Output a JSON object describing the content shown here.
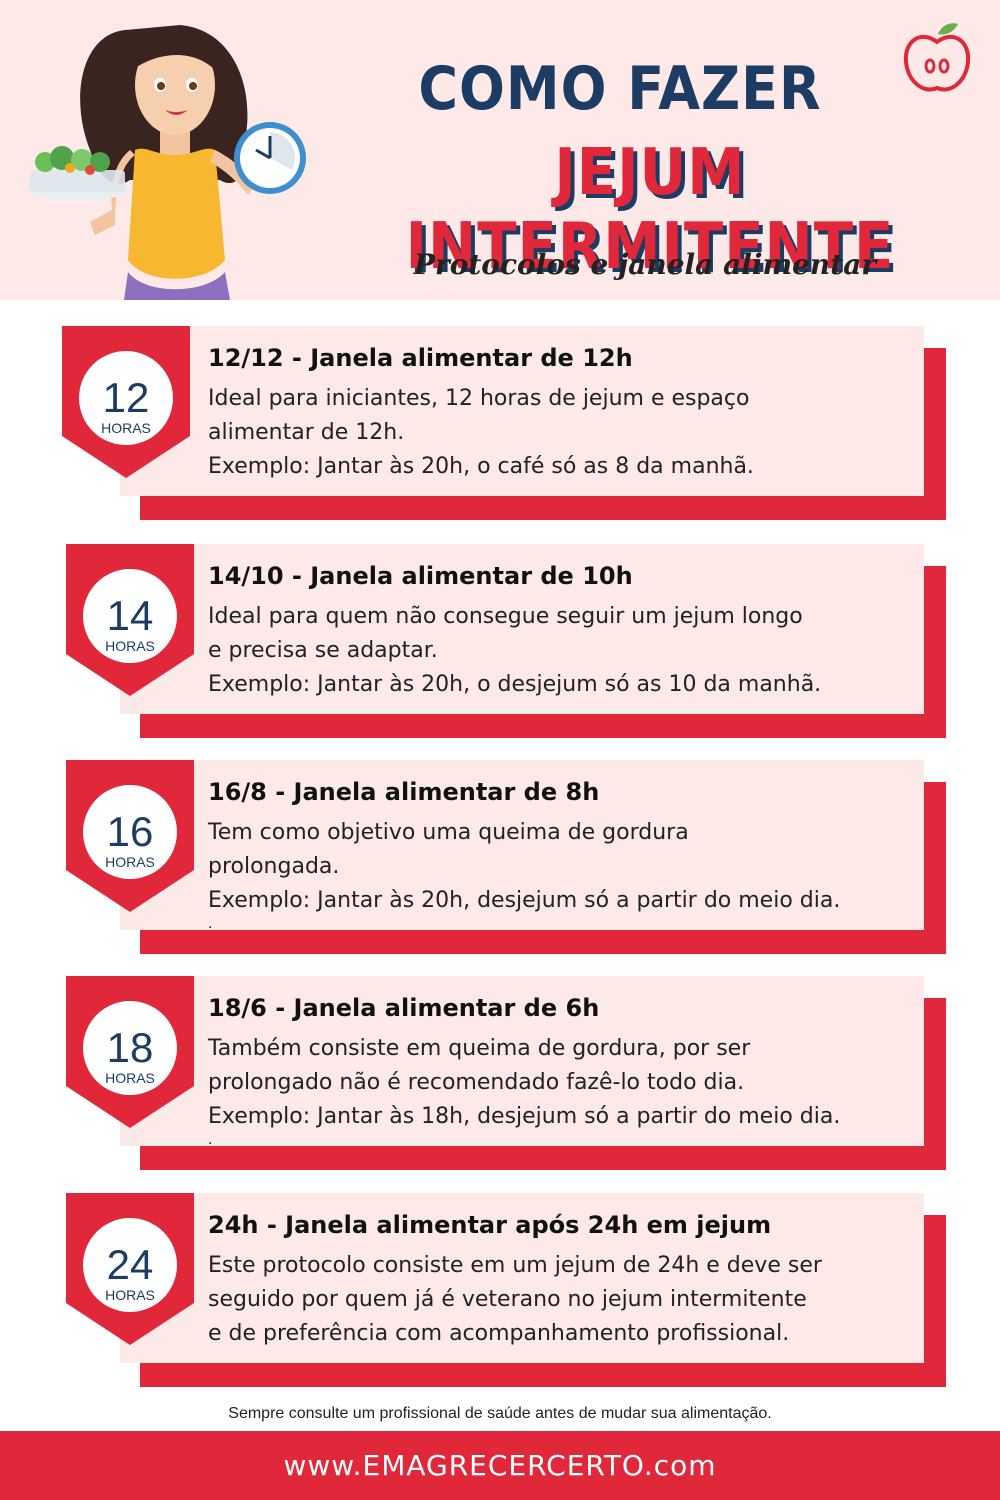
{
  "header": {
    "title_line1": "COMO FAZER",
    "title_line2": "JEJUM INTERMITENTE",
    "subtitle": "Protocolos e janela alimentar"
  },
  "colors": {
    "red": "#e0283a",
    "navy": "#1d3c63",
    "pink_bg": "#fce9e8"
  },
  "cards": [
    {
      "number": "12",
      "unit": "HORAS",
      "title": "12/12 - Janela alimentar de 12h",
      "lines": [
        "Ideal para iniciantes, 12 horas de jejum e espaço",
        "alimentar de 12h.",
        "Exemplo: Jantar às 20h, o café só as 8 da manhã."
      ]
    },
    {
      "number": "14",
      "unit": "HORAS",
      "title": "14/10 - Janela alimentar de 10h",
      "lines": [
        "Ideal para quem não consegue seguir um jejum longo",
        "e precisa se adaptar.",
        "Exemplo: Jantar às 20h, o desjejum só as 10 da manhã."
      ]
    },
    {
      "number": "16",
      "unit": "HORAS",
      "title": "16/8 - Janela alimentar de 8h",
      "lines": [
        "Tem como objetivo uma queima de gordura",
        "prolongada.",
        "Exemplo: Jantar às 20h, desjejum só a partir do meio dia."
      ],
      "trailing": "."
    },
    {
      "number": "18",
      "unit": "HORAS",
      "title": "18/6 - Janela alimentar de 6h",
      "lines": [
        "Também consiste em queima de gordura, por ser",
        "prolongado não é recomendado fazê-lo todo dia.",
        "Exemplo: Jantar às 18h, desjejum só a partir do meio dia."
      ],
      "trailing": "."
    },
    {
      "number": "24",
      "unit": "HORAS",
      "title": "24h - Janela alimentar após 24h em jejum",
      "lines": [
        "Este protocolo consiste em um jejum de 24h e deve ser",
        "seguido por quem já é veterano no jejum intermitente",
        "e de preferência com acompanhamento profissional."
      ]
    }
  ],
  "disclaimer": "Sempre consulte um profissional de saúde antes de mudar sua alimentação.",
  "footer": {
    "url": "www.EMAGRECERCERTO.com"
  }
}
